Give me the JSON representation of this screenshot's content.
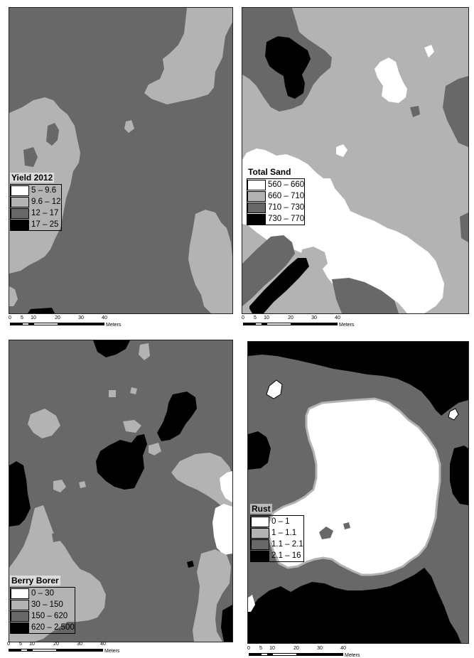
{
  "colors": {
    "class1": "#ffffff",
    "class2": "#b3b3b3",
    "class3": "#686868",
    "class4": "#000000"
  },
  "scale": {
    "ticks": [
      "0",
      "5",
      "10",
      "20",
      "30",
      "40"
    ],
    "unit": "Meters"
  },
  "maps": [
    {
      "title": "Yield 2012",
      "classes": [
        "5 – 9.6",
        "9.6 – 12",
        "12 – 17",
        "17 – 25"
      ]
    },
    {
      "title": "Total Sand",
      "classes": [
        "560 – 660",
        "660 – 710",
        "710 – 730",
        "730 – 770"
      ]
    },
    {
      "title": "Berry Borer",
      "classes": [
        "0 – 30",
        "30 – 150",
        "150 – 620",
        "620 – 2,500"
      ]
    },
    {
      "title": "Rust",
      "classes": [
        "0 – 1",
        "1 – 1.1",
        "1.1 – 2.1",
        "2.1 – 16"
      ]
    }
  ]
}
